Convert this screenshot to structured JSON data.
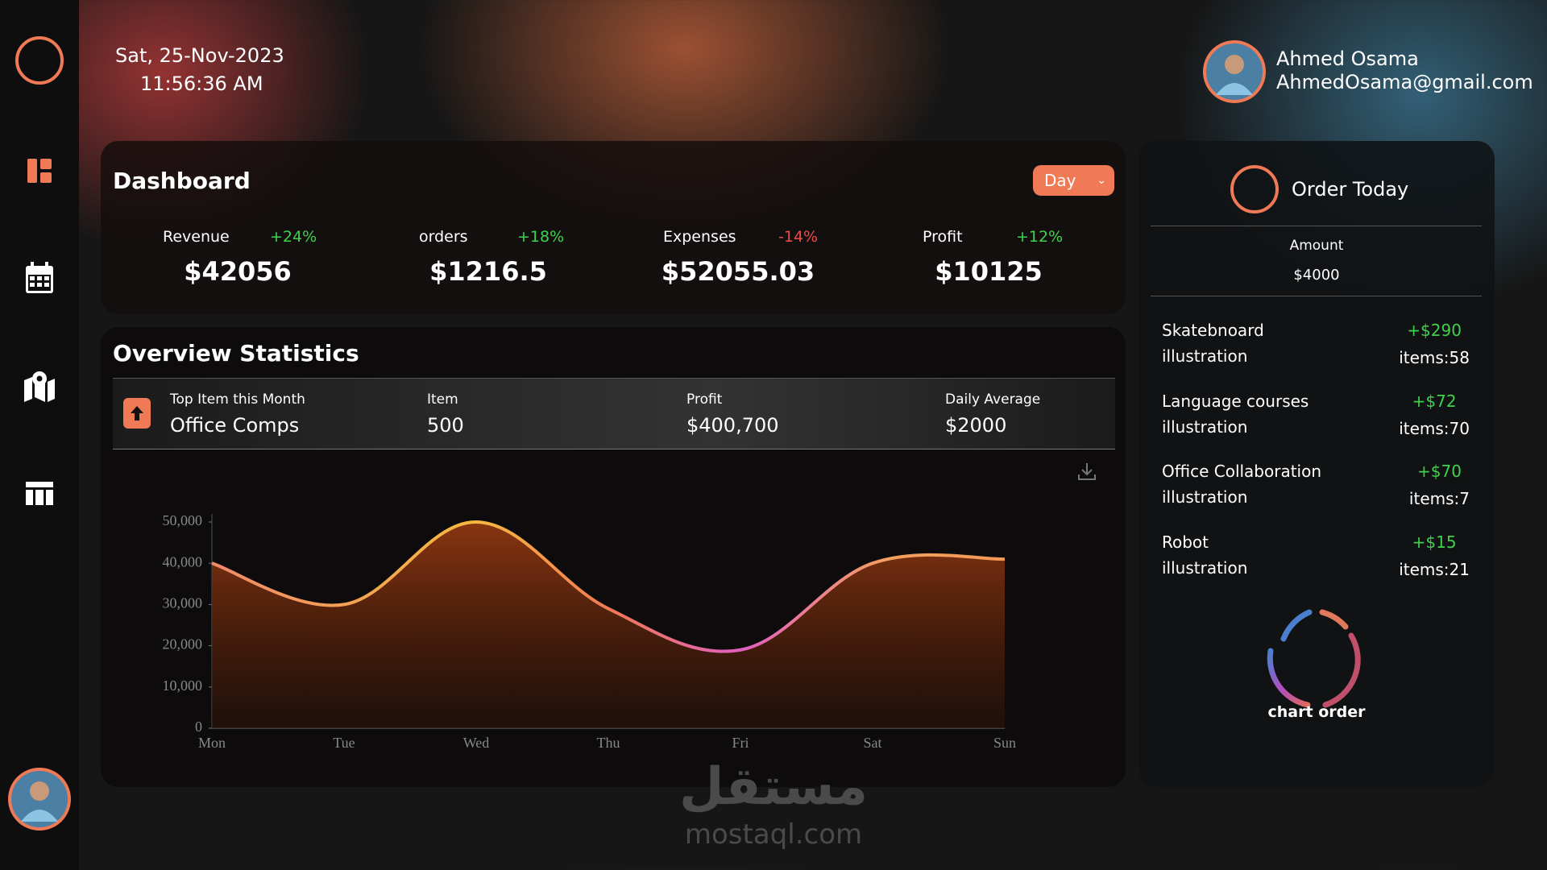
{
  "header": {
    "date": "Sat, 25-Nov-2023",
    "time": "11:56:36 AM",
    "user_name": "Ahmed Osama",
    "user_email": "AhmedOsama@gmail.com"
  },
  "dashboard": {
    "title": "Dashboard",
    "period": "Day",
    "stats": [
      {
        "label": "Revenue",
        "change": "+24%",
        "value": "$42056"
      },
      {
        "label": "orders",
        "change": "+18%",
        "value": "$1216.5"
      },
      {
        "label": "Expenses",
        "change": "-14%",
        "value": "$52055.03"
      },
      {
        "label": "Profit",
        "change": "+12%",
        "value": "$10125"
      }
    ]
  },
  "overview": {
    "title": "Overview Statistics",
    "top_item_label": "Top Item this Month",
    "top_item": "Office Comps",
    "item_label": "Item",
    "item": "500",
    "profit_label": "Profit",
    "profit": "$400,700",
    "daily_label": "Daily Average",
    "daily": "$2000"
  },
  "chart_data": {
    "type": "line",
    "categories": [
      "Mon",
      "Tue",
      "Wed",
      "Thu",
      "Fri",
      "Sat",
      "Sun"
    ],
    "values": [
      40000,
      30000,
      50000,
      29000,
      19000,
      40000,
      41000
    ],
    "color": "#f39a55",
    "ylim": [
      0,
      50000
    ],
    "yticks": [
      0,
      {
        "value": 10000,
        "label": "10,000"
      },
      {
        "value": 20000,
        "label": "20,000"
      },
      {
        "value": 30000,
        "label": "30,000"
      },
      {
        "value": 40000,
        "label": "40,000"
      },
      {
        "value": 50000,
        "label": "50,000"
      }
    ]
  },
  "order_today": {
    "title": "Order Today",
    "amount_label": "Amount",
    "amount": "$4000",
    "items": [
      {
        "name": "Skatebnoard",
        "sub": "illustration",
        "price": "+$290",
        "count": "items:58"
      },
      {
        "name": "Language courses",
        "sub": "illustration",
        "price": "+$72",
        "count": "items:70"
      },
      {
        "name": "Office Collaboration",
        "sub": "illustration",
        "price": "+$70",
        "count": "items:7"
      },
      {
        "name": "Robot",
        "sub": "illustration",
        "price": "+$15",
        "count": "items:21"
      }
    ],
    "donut_label": "chart order"
  },
  "watermark": {
    "arabic": "مستقل",
    "site": "mostaql.com"
  }
}
